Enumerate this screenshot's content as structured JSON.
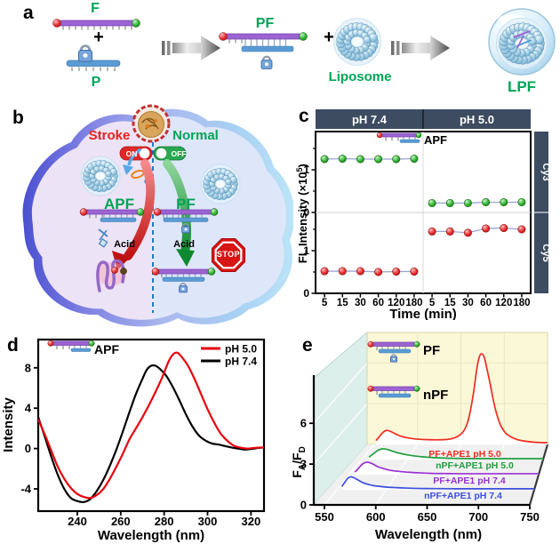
{
  "panels": {
    "a": "a",
    "b": "b",
    "c": "c",
    "d": "d",
    "e": "e"
  },
  "colors": {
    "strip": "#3d4c61",
    "green_label": "#00a455",
    "red_label": "#e8201a",
    "cy3_point": "#128a12",
    "cy5_point": "#d41515",
    "membrane": "#4b50d0",
    "cell_left": "#ece3f6",
    "cell_right": "#dee6fa",
    "backwall": "#fbf8d8",
    "sidewall": "#dcefeb",
    "floor": "#f0f0f0"
  },
  "panel_a": {
    "f": "F",
    "plus1": "+",
    "p": "P",
    "pf": "PF",
    "plus2": "+",
    "liposome": "Liposome",
    "lpf": "LPF",
    "icon_names": [
      "f-probe-icon",
      "p-lock-strand-icon",
      "pf-duplex-lock-icon",
      "liposome-torus-icon",
      "lpf-sphere-icon",
      "reaction-arrow-icon"
    ]
  },
  "panel_b": {
    "stroke": "Stroke",
    "normal": "Normal",
    "on": "ON",
    "off": "OFF",
    "apf": "APF",
    "pf": "PF",
    "acid_left": "Acid",
    "acid_right": "Acid",
    "stop": "STOP"
  },
  "chart_data": [
    {
      "panel": "c",
      "type": "scatter",
      "facet_cols": [
        "pH 7.4",
        "pH 5.0"
      ],
      "facet_rows": [
        "Cy3",
        "Cy5"
      ],
      "x_categories": [
        "5",
        "15",
        "30",
        "60",
        "120",
        "180"
      ],
      "xlabel": "Time (min)",
      "ylabel_parts": {
        "pre": "FL Intensity (×10",
        "sup": "5",
        "post": ")"
      },
      "ylim": [
        0,
        1.9
      ],
      "yticks": [
        0,
        1
      ],
      "yminor": [
        0.5,
        1.5
      ],
      "annotation": "APF",
      "series": [
        {
          "facet_col": "pH 7.4",
          "facet_row": "Cy3",
          "color": "green",
          "values": [
            1.25,
            1.26,
            1.25,
            1.25,
            1.25,
            1.26
          ]
        },
        {
          "facet_col": "pH 5.0",
          "facet_row": "Cy3",
          "color": "green",
          "values": [
            0.22,
            0.22,
            0.22,
            0.24,
            0.24,
            0.24
          ]
        },
        {
          "facet_col": "pH 7.4",
          "facet_row": "Cy5",
          "color": "red",
          "values": [
            0.52,
            0.52,
            0.52,
            0.5,
            0.51,
            0.51
          ]
        },
        {
          "facet_col": "pH 5.0",
          "facet_row": "Cy5",
          "color": "red",
          "values": [
            1.45,
            1.45,
            1.42,
            1.52,
            1.53,
            1.5
          ]
        }
      ]
    },
    {
      "panel": "d",
      "type": "line",
      "xlabel": "Wavelength (nm)",
      "ylabel": "Intensity",
      "xticks": [
        240,
        260,
        280,
        300,
        320
      ],
      "yticks": [
        -4,
        0,
        4,
        8
      ],
      "xlim": [
        222,
        326
      ],
      "ylim": [
        -6.2,
        10.8
      ],
      "annotation": "APF",
      "series": [
        {
          "name": "pH 5.0",
          "color": "#e8000d",
          "points": [
            [
              222,
              2.9
            ],
            [
              225,
              1.4
            ],
            [
              228,
              -0.2
            ],
            [
              231,
              -1.8
            ],
            [
              234,
              -3.0
            ],
            [
              237,
              -3.9
            ],
            [
              240,
              -4.5
            ],
            [
              243,
              -4.8
            ],
            [
              246,
              -4.9
            ],
            [
              249,
              -4.6
            ],
            [
              252,
              -4.0
            ],
            [
              255,
              -3.0
            ],
            [
              258,
              -1.8
            ],
            [
              261,
              -0.5
            ],
            [
              264,
              0.9
            ],
            [
              267,
              2.0
            ],
            [
              270,
              3.1
            ],
            [
              273,
              4.3
            ],
            [
              276,
              5.6
            ],
            [
              279,
              7.0
            ],
            [
              282,
              8.6
            ],
            [
              284,
              9.3
            ],
            [
              286,
              9.5
            ],
            [
              288,
              9.1
            ],
            [
              291,
              8.2
            ],
            [
              294,
              6.9
            ],
            [
              297,
              5.4
            ],
            [
              300,
              3.9
            ],
            [
              303,
              2.6
            ],
            [
              306,
              1.5
            ],
            [
              309,
              0.8
            ],
            [
              312,
              0.3
            ],
            [
              315,
              0.1
            ],
            [
              318,
              0.0
            ],
            [
              321,
              0.05
            ],
            [
              324,
              0.1
            ],
            [
              326,
              0.1
            ]
          ]
        },
        {
          "name": "pH 7.4",
          "color": "#000000",
          "points": [
            [
              222,
              3.1
            ],
            [
              225,
              1.2
            ],
            [
              228,
              -0.8
            ],
            [
              231,
              -2.6
            ],
            [
              234,
              -4.0
            ],
            [
              237,
              -4.9
            ],
            [
              240,
              -5.2
            ],
            [
              243,
              -5.3
            ],
            [
              246,
              -5.0
            ],
            [
              249,
              -4.2
            ],
            [
              252,
              -3.1
            ],
            [
              255,
              -1.7
            ],
            [
              258,
              -0.1
            ],
            [
              261,
              1.7
            ],
            [
              264,
              3.6
            ],
            [
              267,
              5.4
            ],
            [
              270,
              6.9
            ],
            [
              272,
              7.8
            ],
            [
              274,
              8.2
            ],
            [
              276,
              8.2
            ],
            [
              278,
              7.9
            ],
            [
              281,
              7.2
            ],
            [
              284,
              6.1
            ],
            [
              287,
              4.8
            ],
            [
              290,
              3.4
            ],
            [
              293,
              2.2
            ],
            [
              296,
              1.3
            ],
            [
              299,
              0.8
            ],
            [
              302,
              0.5
            ],
            [
              305,
              0.4
            ],
            [
              308,
              0.25
            ],
            [
              311,
              0.1
            ],
            [
              314,
              0.0
            ],
            [
              317,
              -0.1
            ],
            [
              320,
              -0.05
            ],
            [
              323,
              0.05
            ],
            [
              326,
              0.1
            ]
          ]
        }
      ]
    },
    {
      "panel": "e",
      "type": "3d-waterfall",
      "xlabel": "Wavelength (nm)",
      "ylabel_parts": {
        "pre": "F",
        "sub1": "A",
        "mid": "/F",
        "sub2": "D"
      },
      "xticks": [
        550,
        600,
        650,
        700,
        750
      ],
      "yticks": [
        0,
        3,
        6
      ],
      "legend": [
        {
          "label": "PF"
        },
        {
          "label": "nPF"
        }
      ],
      "series": [
        {
          "name": "nPF+APE1 pH 7.4",
          "color": "#3b4fdc",
          "depth": 1,
          "points": [
            [
              555,
              0.25
            ],
            [
              558,
              0.55
            ],
            [
              561,
              0.85
            ],
            [
              564,
              0.95
            ],
            [
              567,
              0.9
            ],
            [
              570,
              0.78
            ],
            [
              574,
              0.62
            ],
            [
              578,
              0.48
            ],
            [
              583,
              0.38
            ],
            [
              588,
              0.3
            ],
            [
              594,
              0.25
            ],
            [
              600,
              0.2
            ],
            [
              610,
              0.16
            ],
            [
              620,
              0.13
            ],
            [
              635,
              0.1
            ],
            [
              650,
              0.09
            ],
            [
              670,
              0.08
            ],
            [
              700,
              0.08
            ],
            [
              725,
              0.08
            ],
            [
              750,
              0.08
            ]
          ]
        },
        {
          "name": "PF+APE1 pH 7.4",
          "color": "#9a30d5",
          "depth": 2,
          "points": [
            [
              556,
              0.2
            ],
            [
              560,
              0.5
            ],
            [
              564,
              0.8
            ],
            [
              568,
              0.92
            ],
            [
              572,
              0.88
            ],
            [
              576,
              0.75
            ],
            [
              580,
              0.6
            ],
            [
              585,
              0.48
            ],
            [
              590,
              0.38
            ],
            [
              596,
              0.3
            ],
            [
              604,
              0.24
            ],
            [
              612,
              0.19
            ],
            [
              622,
              0.15
            ],
            [
              635,
              0.11
            ],
            [
              650,
              0.09
            ],
            [
              670,
              0.08
            ],
            [
              700,
              0.08
            ],
            [
              750,
              0.08
            ]
          ]
        },
        {
          "name": "nPF+APE1 pH 5.0",
          "color": "#1f9e3e",
          "depth": 3,
          "points": [
            [
              558,
              0.2
            ],
            [
              563,
              0.45
            ],
            [
              568,
              0.7
            ],
            [
              573,
              0.8
            ],
            [
              578,
              0.76
            ],
            [
              583,
              0.65
            ],
            [
              588,
              0.54
            ],
            [
              594,
              0.44
            ],
            [
              600,
              0.36
            ],
            [
              608,
              0.28
            ],
            [
              616,
              0.22
            ],
            [
              626,
              0.17
            ],
            [
              638,
              0.13
            ],
            [
              652,
              0.1
            ],
            [
              670,
              0.09
            ],
            [
              700,
              0.08
            ],
            [
              750,
              0.08
            ]
          ]
        },
        {
          "name": "PF+APE1 pH 5.0",
          "color": "#f02b20",
          "depth": 4,
          "points": [
            [
              552,
              0.3
            ],
            [
              556,
              0.6
            ],
            [
              560,
              0.9
            ],
            [
              564,
              1.05
            ],
            [
              568,
              1.0
            ],
            [
              572,
              0.88
            ],
            [
              576,
              0.75
            ],
            [
              581,
              0.62
            ],
            [
              587,
              0.52
            ],
            [
              594,
              0.45
            ],
            [
              602,
              0.4
            ],
            [
              612,
              0.37
            ],
            [
              622,
              0.36
            ],
            [
              632,
              0.38
            ],
            [
              640,
              0.45
            ],
            [
              646,
              0.6
            ],
            [
              652,
              0.9
            ],
            [
              657,
              1.5
            ],
            [
              661,
              2.5
            ],
            [
              665,
              4.0
            ],
            [
              668,
              5.4
            ],
            [
              671,
              6.4
            ],
            [
              674,
              6.7
            ],
            [
              677,
              6.4
            ],
            [
              680,
              5.6
            ],
            [
              684,
              4.4
            ],
            [
              688,
              3.1
            ],
            [
              692,
              2.1
            ],
            [
              696,
              1.4
            ],
            [
              701,
              0.9
            ],
            [
              707,
              0.6
            ],
            [
              714,
              0.4
            ],
            [
              722,
              0.28
            ],
            [
              732,
              0.2
            ],
            [
              742,
              0.16
            ],
            [
              750,
              0.15
            ]
          ]
        }
      ]
    }
  ]
}
